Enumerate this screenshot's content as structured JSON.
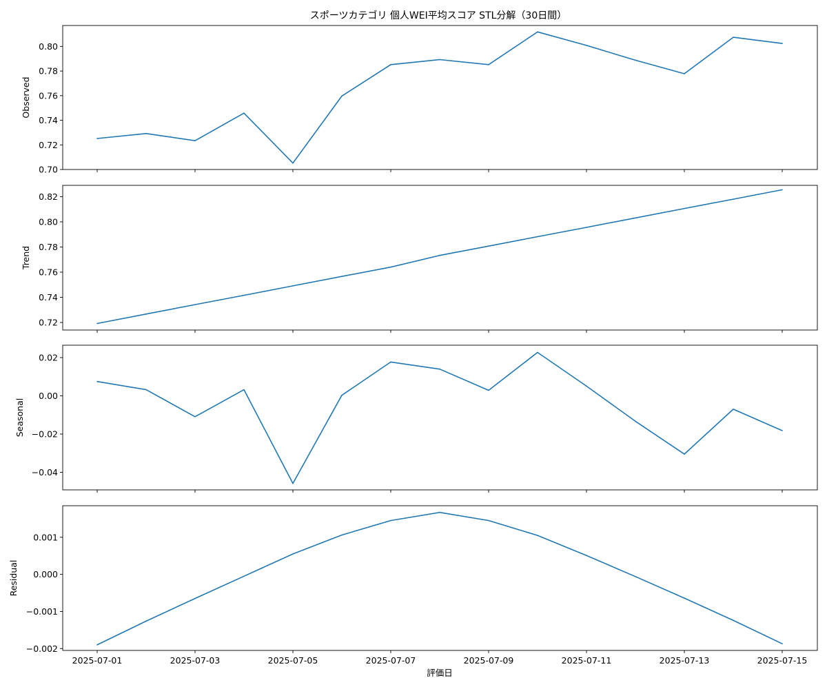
{
  "chart_data": {
    "type": "line",
    "title": "スポーツカテゴリ 個人WEI平均スコア STL分解（30日間）",
    "xlabel": "評価日",
    "x": [
      "2025-07-01",
      "2025-07-02",
      "2025-07-03",
      "2025-07-04",
      "2025-07-05",
      "2025-07-06",
      "2025-07-07",
      "2025-07-08",
      "2025-07-09",
      "2025-07-10",
      "2025-07-11",
      "2025-07-12",
      "2025-07-13",
      "2025-07-14",
      "2025-07-15"
    ],
    "x_tick_labels": [
      "2025-07-01",
      "2025-07-03",
      "2025-07-05",
      "2025-07-07",
      "2025-07-09",
      "2025-07-11",
      "2025-07-13",
      "2025-07-15"
    ],
    "line_color": "#1f77b4",
    "grid": false,
    "panels": [
      {
        "ylabel": "Observed",
        "ylim": [
          0.7,
          0.817
        ],
        "yticks": [
          0.7,
          0.72,
          0.74,
          0.76,
          0.78,
          0.8
        ],
        "ytick_labels": [
          "0.70",
          "0.72",
          "0.74",
          "0.76",
          "0.78",
          "0.80"
        ],
        "values": [
          0.7252,
          0.7292,
          0.7234,
          0.7458,
          0.7052,
          0.7597,
          0.7852,
          0.7893,
          0.7852,
          0.8118,
          0.8008,
          0.7888,
          0.7778,
          0.8074,
          0.8024
        ]
      },
      {
        "ylabel": "Trend",
        "ylim": [
          0.714,
          0.829
        ],
        "yticks": [
          0.72,
          0.74,
          0.76,
          0.78,
          0.8,
          0.82
        ],
        "ytick_labels": [
          "0.72",
          "0.74",
          "0.76",
          "0.78",
          "0.80",
          "0.82"
        ],
        "values": [
          0.7192,
          0.7267,
          0.7342,
          0.7416,
          0.7491,
          0.7566,
          0.764,
          0.7733,
          0.7807,
          0.7882,
          0.7956,
          0.8031,
          0.8106,
          0.818,
          0.8255
        ]
      },
      {
        "ylabel": "Seasonal",
        "ylim": [
          -0.0492,
          0.0265
        ],
        "yticks": [
          -0.04,
          -0.02,
          0.0,
          0.02
        ],
        "ytick_labels": [
          "−0.04",
          "−0.02",
          "0.00",
          "0.02"
        ],
        "values": [
          0.0075,
          0.0032,
          -0.0109,
          0.0032,
          -0.0458,
          0.0003,
          0.0177,
          0.014,
          0.0029,
          0.0227,
          0.0051,
          -0.0133,
          -0.0305,
          -0.007,
          -0.0182
        ]
      },
      {
        "ylabel": "Residual",
        "ylim": [
          -0.00205,
          0.00185
        ],
        "yticks": [
          -0.002,
          -0.001,
          0.0,
          0.001
        ],
        "ytick_labels": [
          "−0.002",
          "−0.001",
          "0.000",
          "0.001"
        ],
        "values": [
          -0.0019,
          -0.00126,
          -0.00065,
          -5e-05,
          0.00055,
          0.00106,
          0.00145,
          0.00167,
          0.00145,
          0.00105,
          0.00051,
          -6e-05,
          -0.00064,
          -0.00124,
          -0.00187
        ]
      }
    ]
  }
}
